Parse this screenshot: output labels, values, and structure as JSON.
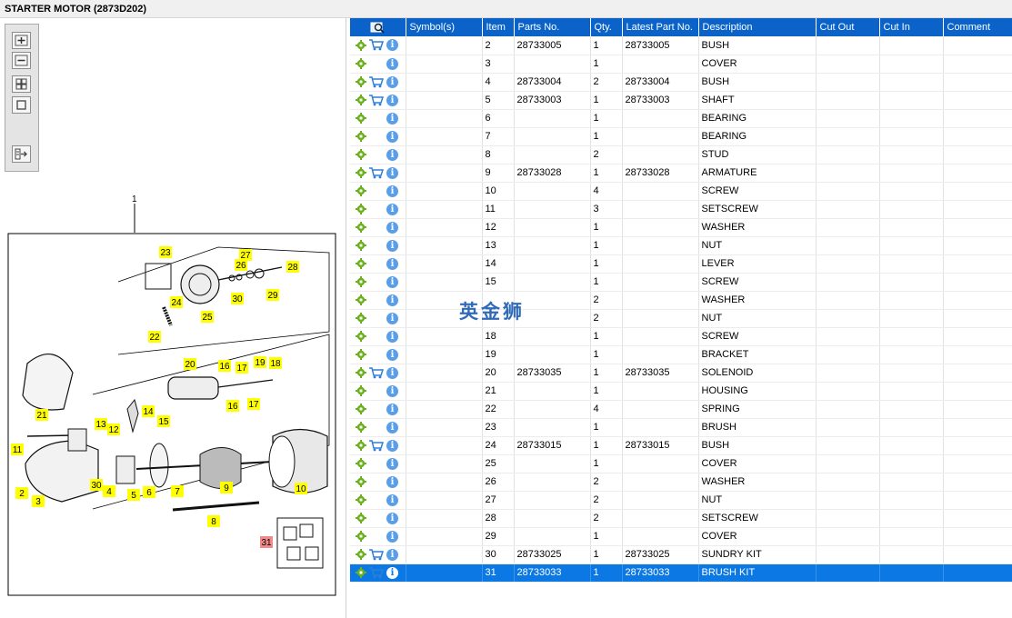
{
  "window": {
    "title": "STARTER MOTOR (2873D202)"
  },
  "toolbar": {
    "icons": [
      "zoom-in-icon",
      "zoom-out-icon",
      "fit-all-icon",
      "fit-window-icon",
      "export-icon"
    ]
  },
  "watermark": "英金狮",
  "diagram": {
    "assembly_label": "1",
    "callouts": [
      "23",
      "27",
      "26",
      "28",
      "24",
      "25",
      "30",
      "29",
      "22",
      "20",
      "16",
      "17",
      "19",
      "18",
      "21",
      "16",
      "17",
      "13",
      "14",
      "15",
      "12",
      "11",
      "2",
      "3",
      "30",
      "4",
      "5",
      "6",
      "7",
      "9",
      "10",
      "8",
      "31"
    ]
  },
  "grid": {
    "columns": [
      "",
      "Symbol(s)",
      "Item",
      "Parts No.",
      "Qty.",
      "Latest Part No.",
      "Description",
      "Cut Out",
      "Cut In",
      "Comment"
    ],
    "header_icon": "search-table-icon",
    "rows": [
      {
        "item": "2",
        "part": "28733005",
        "qty": "1",
        "latest": "28733005",
        "desc": "BUSH",
        "cart": true
      },
      {
        "item": "3",
        "part": "",
        "qty": "1",
        "latest": "",
        "desc": "COVER",
        "cart": false
      },
      {
        "item": "4",
        "part": "28733004",
        "qty": "2",
        "latest": "28733004",
        "desc": "BUSH",
        "cart": true
      },
      {
        "item": "5",
        "part": "28733003",
        "qty": "1",
        "latest": "28733003",
        "desc": "SHAFT",
        "cart": true
      },
      {
        "item": "6",
        "part": "",
        "qty": "1",
        "latest": "",
        "desc": "BEARING",
        "cart": false
      },
      {
        "item": "7",
        "part": "",
        "qty": "1",
        "latest": "",
        "desc": "BEARING",
        "cart": false
      },
      {
        "item": "8",
        "part": "",
        "qty": "2",
        "latest": "",
        "desc": "STUD",
        "cart": false
      },
      {
        "item": "9",
        "part": "28733028",
        "qty": "1",
        "latest": "28733028",
        "desc": "ARMATURE",
        "cart": true
      },
      {
        "item": "10",
        "part": "",
        "qty": "4",
        "latest": "",
        "desc": "SCREW",
        "cart": false
      },
      {
        "item": "11",
        "part": "",
        "qty": "3",
        "latest": "",
        "desc": "SETSCREW",
        "cart": false
      },
      {
        "item": "12",
        "part": "",
        "qty": "1",
        "latest": "",
        "desc": "WASHER",
        "cart": false
      },
      {
        "item": "13",
        "part": "",
        "qty": "1",
        "latest": "",
        "desc": "NUT",
        "cart": false
      },
      {
        "item": "14",
        "part": "",
        "qty": "1",
        "latest": "",
        "desc": "LEVER",
        "cart": false
      },
      {
        "item": "15",
        "part": "",
        "qty": "1",
        "latest": "",
        "desc": "SCREW",
        "cart": false
      },
      {
        "item": "",
        "part": "",
        "qty": "2",
        "latest": "",
        "desc": "WASHER",
        "cart": false
      },
      {
        "item": "",
        "part": "",
        "qty": "2",
        "latest": "",
        "desc": "NUT",
        "cart": false
      },
      {
        "item": "18",
        "part": "",
        "qty": "1",
        "latest": "",
        "desc": "SCREW",
        "cart": false
      },
      {
        "item": "19",
        "part": "",
        "qty": "1",
        "latest": "",
        "desc": "BRACKET",
        "cart": false
      },
      {
        "item": "20",
        "part": "28733035",
        "qty": "1",
        "latest": "28733035",
        "desc": "SOLENOID",
        "cart": true
      },
      {
        "item": "21",
        "part": "",
        "qty": "1",
        "latest": "",
        "desc": "HOUSING",
        "cart": false
      },
      {
        "item": "22",
        "part": "",
        "qty": "4",
        "latest": "",
        "desc": "SPRING",
        "cart": false
      },
      {
        "item": "23",
        "part": "",
        "qty": "1",
        "latest": "",
        "desc": "BRUSH",
        "cart": false
      },
      {
        "item": "24",
        "part": "28733015",
        "qty": "1",
        "latest": "28733015",
        "desc": "BUSH",
        "cart": true
      },
      {
        "item": "25",
        "part": "",
        "qty": "1",
        "latest": "",
        "desc": "COVER",
        "cart": false
      },
      {
        "item": "26",
        "part": "",
        "qty": "2",
        "latest": "",
        "desc": "WASHER",
        "cart": false
      },
      {
        "item": "27",
        "part": "",
        "qty": "2",
        "latest": "",
        "desc": "NUT",
        "cart": false
      },
      {
        "item": "28",
        "part": "",
        "qty": "2",
        "latest": "",
        "desc": "SETSCREW",
        "cart": false
      },
      {
        "item": "29",
        "part": "",
        "qty": "1",
        "latest": "",
        "desc": "COVER",
        "cart": false
      },
      {
        "item": "30",
        "part": "28733025",
        "qty": "1",
        "latest": "28733025",
        "desc": "SUNDRY KIT",
        "cart": true
      },
      {
        "item": "31",
        "part": "28733033",
        "qty": "1",
        "latest": "28733033",
        "desc": "BRUSH KIT",
        "cart": true,
        "selected": true
      }
    ]
  }
}
